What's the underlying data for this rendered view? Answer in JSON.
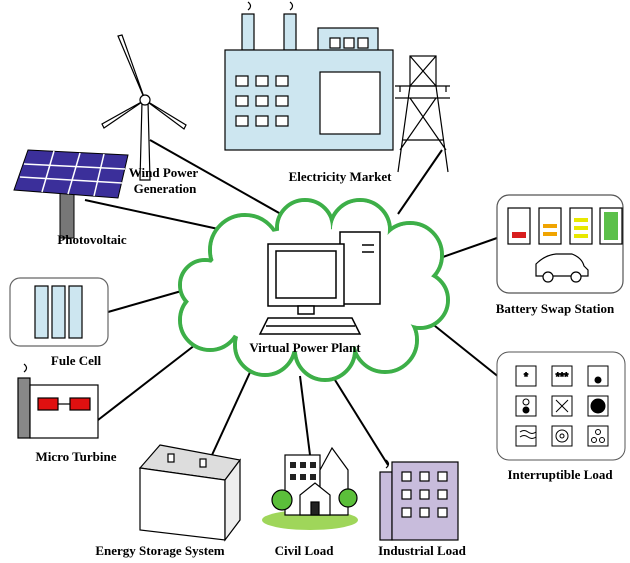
{
  "center": {
    "label": "Virtual Power Plant"
  },
  "nodes": [
    {
      "label": [
        "Wind Power",
        "Generation"
      ]
    },
    {
      "label": "Electricity Market"
    },
    {
      "label": "Photovoltaic"
    },
    {
      "label": "Battery Swap Station"
    },
    {
      "label": "Fule Cell"
    },
    {
      "label": "Micro Turbine"
    },
    {
      "label": "Interruptible Load"
    },
    {
      "label": "Energy Storage System"
    },
    {
      "label": "Civil Load"
    },
    {
      "label": "Industrial Load"
    }
  ],
  "interruptible_symbols": [
    "*",
    "***"
  ]
}
